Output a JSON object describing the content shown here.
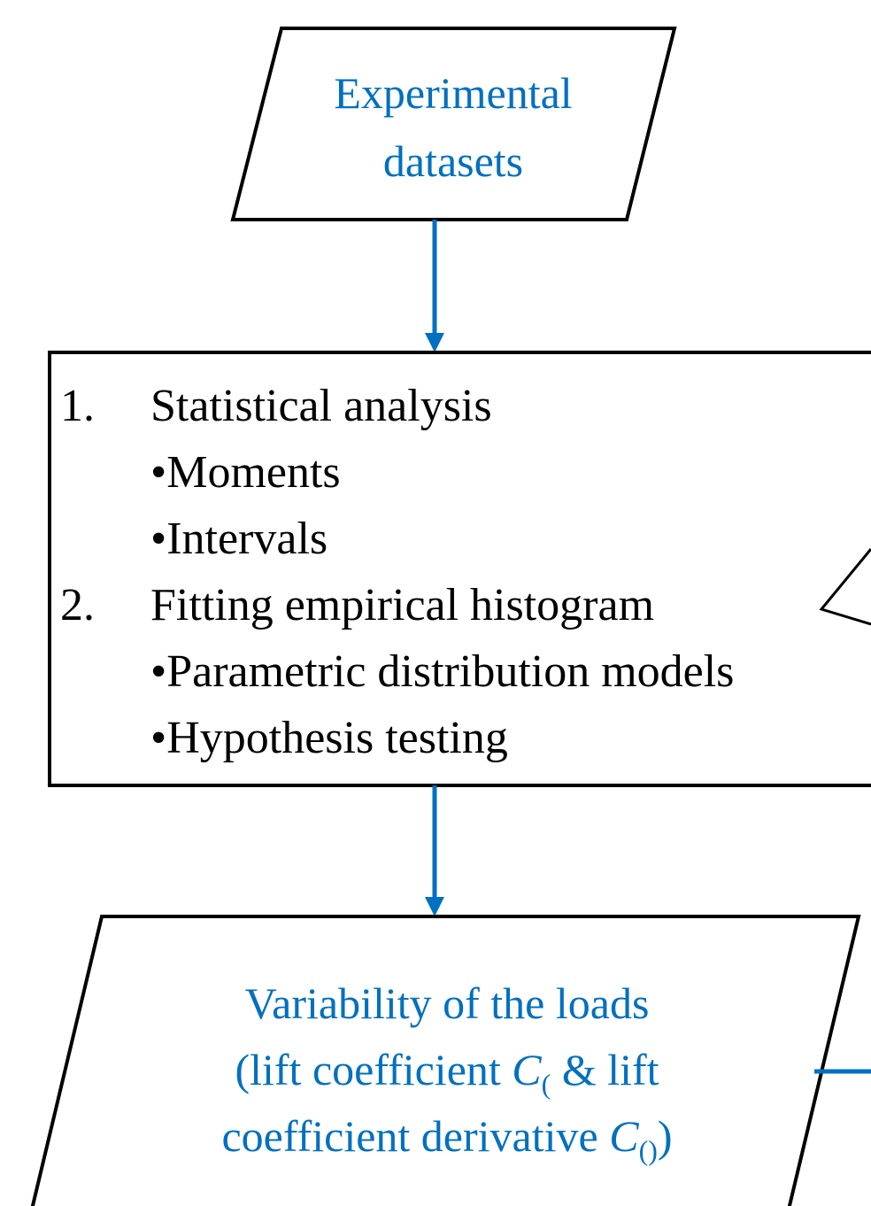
{
  "nodes": [
    {
      "lines": [
        "Experimental",
        "datasets"
      ]
    },
    {
      "items": [
        {
          "number": "1.",
          "text": "Statistical analysis",
          "bullets": [
            "•Moments",
            "•Intervals"
          ]
        },
        {
          "number": "2.",
          "text": "Fitting empirical histogram",
          "bullets": [
            "•Parametric distribution models",
            "•Hypothesis testing"
          ]
        }
      ]
    },
    {
      "lines": [
        [
          "Variability of the loads"
        ],
        [
          "(lift coefficient ",
          "C",
          "(",
          " & lift"
        ],
        [
          "coefficient derivative ",
          "C",
          "()",
          ")"
        ]
      ]
    }
  ]
}
